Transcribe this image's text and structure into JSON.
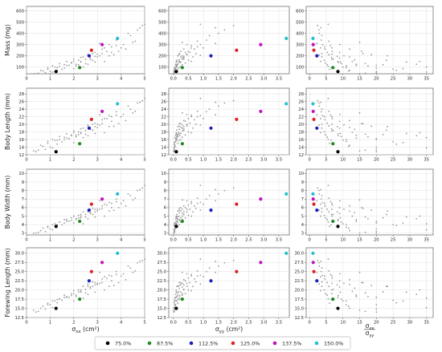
{
  "chart_data": {
    "type": "scatter",
    "layout": "4x3 grid of scatter panels",
    "grid": true,
    "legend_placement": "bottom",
    "x_axes": [
      {
        "label": "σxx (cm²)",
        "label_parts": {
          "sym": "σ",
          "sub": "xx",
          "unit": " (cm²)"
        },
        "range": [
          0,
          5
        ],
        "ticks": [
          "0",
          "1",
          "2",
          "3",
          "4",
          "5"
        ]
      },
      {
        "label": "σyy (cm²)",
        "label_parts": {
          "sym": "σ",
          "sub": "yy",
          "unit": " (cm²)"
        },
        "range": [
          -0.15,
          3.85
        ],
        "ticks": [
          "0.0",
          "0.5",
          "1.0",
          "1.5",
          "2.0",
          "2.5",
          "3.0",
          "3.5"
        ]
      },
      {
        "label": "σxx / σyy",
        "label_parts": {
          "num": "σ",
          "num_sub": "xx",
          "den": "σ",
          "den_sub": "yy"
        },
        "range": [
          -1,
          37
        ],
        "ticks": [
          "0",
          "5",
          "10",
          "15",
          "20",
          "25",
          "30",
          "35"
        ]
      }
    ],
    "y_axes": [
      {
        "label": "Mass (mg)",
        "range": [
          40,
          640
        ],
        "ticks": [
          "100",
          "200",
          "300",
          "400",
          "500",
          "600"
        ]
      },
      {
        "label": "Body Length (mm)",
        "range": [
          12,
          29.5
        ],
        "ticks": [
          "12",
          "14",
          "16",
          "18",
          "20",
          "22",
          "24",
          "26",
          "28"
        ]
      },
      {
        "label": "Body Width (mm)",
        "range": [
          2.8,
          10.5
        ],
        "ticks": [
          "3",
          "4",
          "5",
          "6",
          "7",
          "8",
          "9",
          "10"
        ]
      },
      {
        "label": "Forewing Length (mm)",
        "range": [
          12.5,
          31.5
        ],
        "ticks": [
          "12.5",
          "15.0",
          "17.5",
          "20.0",
          "22.5",
          "25.0",
          "27.5",
          "30.0"
        ]
      }
    ],
    "series": [
      {
        "name": "75.0%",
        "color": "#000000",
        "sxx": 1.25,
        "syy": 0.1,
        "ratio": 8.5,
        "mass": 60,
        "length": 12.8,
        "width": 3.8,
        "forewing": 15.0
      },
      {
        "name": "87.5%",
        "color": "#228b22",
        "sxx": 2.25,
        "syy": 0.3,
        "ratio": 7.0,
        "mass": 95,
        "length": 14.9,
        "width": 4.4,
        "forewing": 17.5
      },
      {
        "name": "112.5%",
        "color": "#1f1fbf",
        "sxx": 2.65,
        "syy": 1.25,
        "ratio": 2.2,
        "mass": 200,
        "length": 19.0,
        "width": 5.7,
        "forewing": 22.5
      },
      {
        "name": "125.0%",
        "color": "#dd2222",
        "sxx": 2.75,
        "syy": 2.1,
        "ratio": 1.3,
        "mass": 250,
        "length": 21.3,
        "width": 6.4,
        "forewing": 25.0
      },
      {
        "name": "137.5%",
        "color": "#c010c0",
        "sxx": 3.2,
        "syy": 2.9,
        "ratio": 1.1,
        "mass": 300,
        "length": 23.4,
        "width": 7.0,
        "forewing": 27.5
      },
      {
        "name": "150.0%",
        "color": "#20c0d0",
        "sxx": 3.85,
        "syy": 3.75,
        "ratio": 1.03,
        "mass": 355,
        "length": 25.4,
        "width": 7.6,
        "forewing": 30.0
      }
    ],
    "background_points": [
      [
        0.3,
        0.02,
        15,
        40,
        13,
        3.0,
        14.5
      ],
      [
        0.6,
        0.05,
        12,
        70,
        14.5,
        3.3,
        15
      ],
      [
        0.9,
        0.08,
        11,
        95,
        15.5,
        3.7,
        16
      ],
      [
        1.1,
        0.1,
        11,
        110,
        16,
        4.0,
        17
      ],
      [
        1.4,
        0.15,
        9.5,
        130,
        16.8,
        4.3,
        17.5
      ],
      [
        1.7,
        0.2,
        8.5,
        150,
        17.5,
        4.6,
        18
      ],
      [
        2.0,
        0.3,
        6.7,
        170,
        18.3,
        5.0,
        19
      ],
      [
        2.3,
        0.35,
        6.6,
        185,
        18.8,
        5.2,
        20
      ],
      [
        2.6,
        0.45,
        5.8,
        210,
        19.6,
        5.5,
        21
      ],
      [
        2.9,
        0.55,
        5.3,
        230,
        20.3,
        5.8,
        22
      ],
      [
        3.2,
        0.7,
        4.6,
        260,
        21.2,
        6.2,
        23
      ],
      [
        3.5,
        0.9,
        3.9,
        300,
        22.3,
        6.6,
        24
      ],
      [
        3.8,
        1.1,
        3.5,
        340,
        23.3,
        7.0,
        25
      ],
      [
        4.3,
        1.5,
        2.9,
        400,
        24.8,
        7.6,
        26.5
      ],
      [
        4.9,
        2.0,
        2.45,
        470,
        26.2,
        8.3,
        28
      ],
      [
        1.0,
        0.05,
        20,
        60,
        14,
        3.5,
        16
      ],
      [
        1.6,
        0.08,
        20,
        90,
        16,
        4.2,
        18
      ],
      [
        2.2,
        0.1,
        22,
        120,
        17.3,
        4.8,
        19.5
      ],
      [
        2.8,
        0.12,
        23,
        160,
        18.5,
        5.2,
        21
      ],
      [
        3.3,
        0.1,
        33,
        150,
        17.8,
        5.0,
        20
      ],
      [
        0.8,
        0.04,
        20,
        50,
        13.4,
        3.2,
        14.8
      ],
      [
        1.9,
        0.22,
        8.6,
        140,
        17,
        4.5,
        18.5
      ],
      [
        2.4,
        0.05,
        35,
        100,
        16.5,
        4.1,
        17.8
      ],
      [
        3.0,
        0.25,
        12,
        190,
        19.2,
        5.6,
        21.5
      ],
      [
        1.3,
        0.03,
        26,
        70,
        14.8,
        3.9,
        16.5
      ],
      [
        2.1,
        0.12,
        17.5,
        110,
        16.7,
        4.7,
        18.2
      ],
      [
        2.7,
        0.2,
        13.5,
        165,
        18.7,
        5.4,
        20.5
      ],
      [
        3.6,
        0.4,
        9.0,
        230,
        20.8,
        6.0,
        22.5
      ],
      [
        4.0,
        0.6,
        6.7,
        270,
        22.0,
        6.5,
        23.8
      ],
      [
        4.6,
        0.8,
        5.8,
        330,
        23.4,
        7.1,
        25.2
      ],
      [
        0.5,
        0.03,
        16.7,
        45,
        13.2,
        3.1,
        14.2
      ],
      [
        1.5,
        0.06,
        25,
        80,
        15.4,
        4.0,
        17.2
      ],
      [
        2.5,
        0.15,
        16.7,
        130,
        17.4,
        4.9,
        19.2
      ],
      [
        3.1,
        0.3,
        10.3,
        200,
        19.8,
        5.8,
        21.8
      ],
      [
        3.4,
        0.5,
        6.8,
        240,
        21.5,
        6.3,
        23.2
      ],
      [
        2.0,
        0.04,
        28,
        85,
        15.2,
        4.2,
        17.0
      ],
      [
        0.4,
        0.02,
        20,
        42,
        12.8,
        3.0,
        14.0
      ],
      [
        1.8,
        0.09,
        20,
        115,
        16.2,
        4.4,
        18.0
      ],
      [
        2.3,
        0.18,
        12.8,
        150,
        17.9,
        5.0,
        19.6
      ],
      [
        2.9,
        0.1,
        29,
        145,
        17.6,
        4.9,
        19.4
      ],
      [
        3.7,
        0.2,
        18.5,
        210,
        19.5,
        5.7,
        21.2
      ],
      [
        4.2,
        0.35,
        12,
        260,
        21.0,
        6.2,
        22.8
      ],
      [
        1.2,
        0.12,
        10,
        100,
        15.8,
        4.1,
        17.0
      ],
      [
        0.7,
        0.06,
        11.7,
        65,
        14.2,
        3.6,
        15.6
      ],
      [
        2.6,
        0.08,
        32,
        125,
        17.0,
        4.7,
        18.8
      ],
      [
        3.9,
        0.25,
        15.6,
        240,
        20.2,
        6.0,
        22.0
      ],
      [
        1.1,
        0.02,
        35,
        55,
        13.8,
        3.4,
        15.2
      ],
      [
        2.2,
        0.5,
        4.4,
        160,
        18.0,
        5.1,
        20.0
      ],
      [
        2.8,
        0.75,
        3.7,
        220,
        20.0,
        5.9,
        22.2
      ],
      [
        3.3,
        1.0,
        3.3,
        270,
        21.5,
        6.4,
        23.6
      ],
      [
        3.1,
        1.4,
        2.2,
        310,
        22.5,
        6.8,
        24.8
      ],
      [
        2.4,
        0.65,
        3.7,
        190,
        19.0,
        5.5,
        21.0
      ],
      [
        1.6,
        0.3,
        5.3,
        120,
        16.6,
        4.6,
        18.6
      ],
      [
        4.4,
        1.2,
        3.7,
        380,
        24.0,
        7.4,
        26.0
      ],
      [
        4.7,
        1.7,
        2.8,
        430,
        25.6,
        8.0,
        27.4
      ],
      [
        5.0,
        0.9,
        5.6,
        480,
        26.8,
        8.6,
        28.4
      ],
      [
        1.9,
        0.4,
        4.75,
        135,
        17.2,
        4.8,
        19.0
      ],
      [
        2.1,
        0.15,
        14,
        125,
        17.1,
        4.6,
        18.6
      ],
      [
        2.7,
        0.3,
        9,
        180,
        19.0,
        5.3,
        20.8
      ],
      [
        3.5,
        0.15,
        23.3,
        200,
        19.4,
        5.6,
        21.0
      ],
      [
        1.4,
        0.25,
        5.6,
        105,
        16.0,
        4.3,
        17.6
      ],
      [
        2.5,
        0.35,
        7.1,
        170,
        18.4,
        5.2,
        20.2
      ],
      [
        3.0,
        0.45,
        6.7,
        215,
        20.0,
        5.8,
        21.8
      ],
      [
        3.6,
        0.8,
        4.5,
        280,
        22.0,
        6.5,
        23.8
      ],
      [
        0.9,
        0.15,
        6,
        80,
        15.0,
        3.8,
        16.4
      ],
      [
        1.7,
        0.12,
        14,
        115,
        16.4,
        4.4,
        18.2
      ],
      [
        2.0,
        0.6,
        3.3,
        150,
        17.8,
        5.0,
        19.8
      ],
      [
        3.2,
        0.2,
        16,
        220,
        20.2,
        5.9,
        22.0
      ],
      [
        4.1,
        0.45,
        9.1,
        300,
        22.6,
        6.8,
        24.4
      ],
      [
        4.5,
        0.3,
        15,
        320,
        23.0,
        6.9,
        24.8
      ],
      [
        2.6,
        0.9,
        2.9,
        205,
        19.8,
        5.7,
        21.6
      ],
      [
        3.8,
        0.6,
        6.3,
        290,
        22.4,
        6.7,
        24.2
      ],
      [
        1.3,
        0.2,
        6.5,
        95,
        15.8,
        4.0,
        17.4
      ],
      [
        2.3,
        0.25,
        9.2,
        145,
        17.6,
        4.8,
        19.4
      ],
      [
        2.9,
        0.35,
        8.3,
        195,
        19.4,
        5.5,
        21.4
      ],
      [
        4.8,
        1.4,
        3.4,
        450,
        25.8,
        8.1,
        27.8
      ]
    ],
    "legend": [
      "75.0%",
      "87.5%",
      "112.5%",
      "125.0%",
      "137.5%",
      "150.0%"
    ]
  }
}
